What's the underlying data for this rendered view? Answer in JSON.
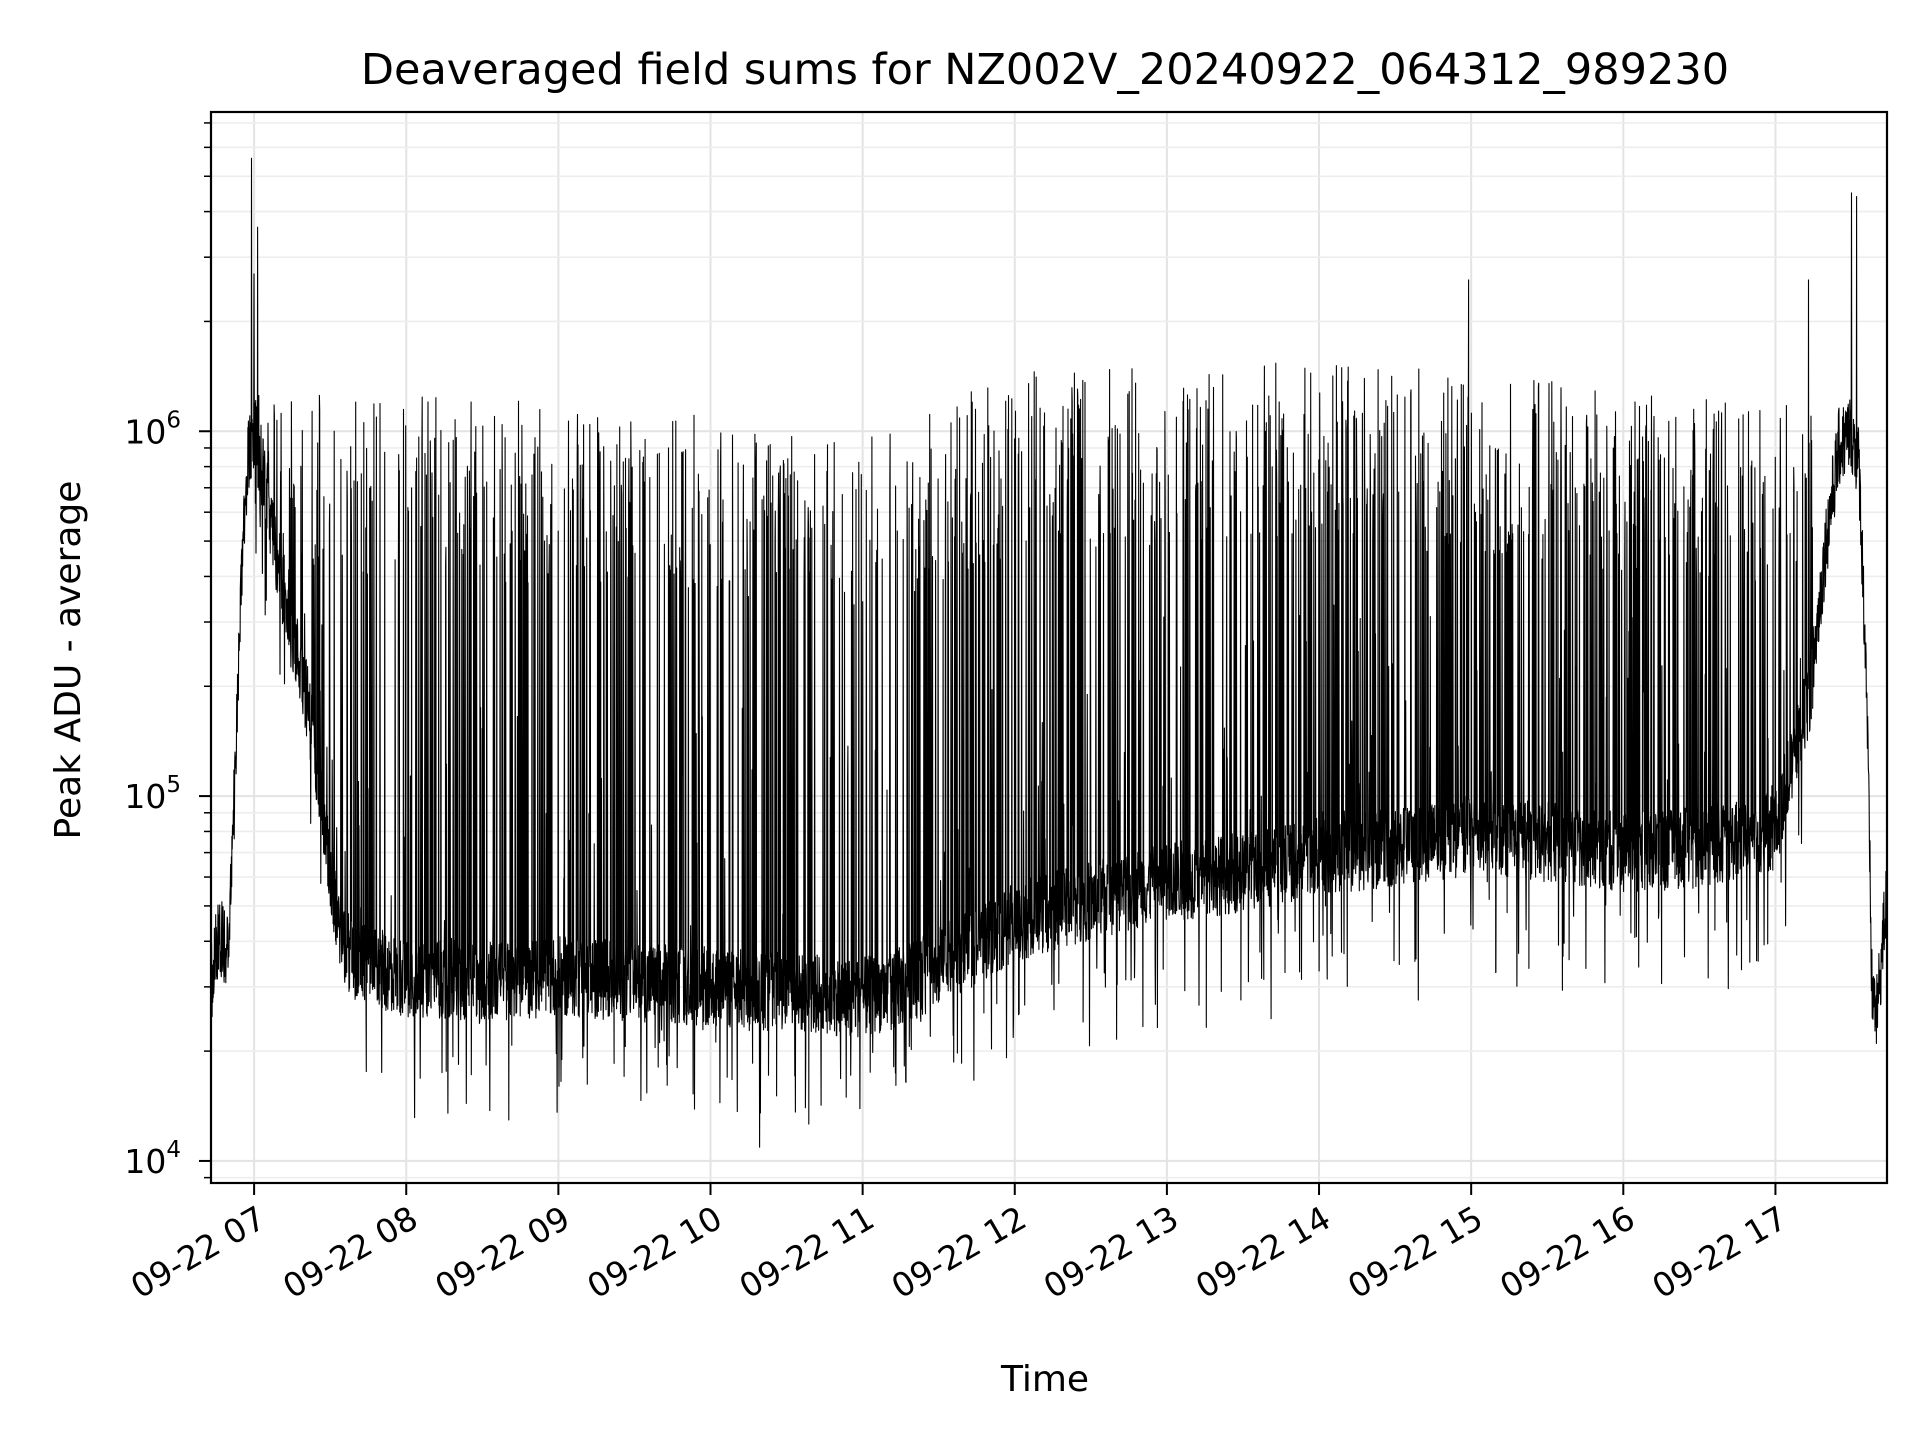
{
  "chart_data": {
    "type": "line",
    "title": "Deaveraged field sums for NZ002V_20240922_064312_989230",
    "xlabel": "Time",
    "ylabel": "Peak ADU - average",
    "yscale": "log",
    "ylim": [
      8700,
      7500000
    ],
    "xlim": [
      "2024-09-22 06:43",
      "2024-09-22 17:44"
    ],
    "grid": true,
    "line_color": "#000000",
    "x_ticks": [
      "09-22 07",
      "09-22 08",
      "09-22 09",
      "09-22 10",
      "09-22 11",
      "09-22 12",
      "09-22 13",
      "09-22 14",
      "09-22 15",
      "09-22 16",
      "09-22 17"
    ],
    "y_ticks": [
      {
        "value": 10000,
        "base": "10",
        "exp": "4"
      },
      {
        "value": 100000,
        "base": "10",
        "exp": "5"
      },
      {
        "value": 1000000,
        "base": "10",
        "exp": "6"
      }
    ],
    "series": [
      {
        "baseline": {
          "x": [
            "2024-09-22 06:43",
            "2024-09-22 06:46",
            "2024-09-22 06:50",
            "2024-09-22 06:52",
            "2024-09-22 06:55",
            "2024-09-22 06:58",
            "2024-09-22 07:00",
            "2024-09-22 07:03",
            "2024-09-22 07:08",
            "2024-09-22 07:14",
            "2024-09-22 07:20",
            "2024-09-22 07:25",
            "2024-09-22 07:30",
            "2024-09-22 07:35",
            "2024-09-22 07:40",
            "2024-09-22 08:00",
            "2024-09-22 08:30",
            "2024-09-22 09:00",
            "2024-09-22 09:30",
            "2024-09-22 10:00",
            "2024-09-22 10:30",
            "2024-09-22 11:00",
            "2024-09-22 11:15",
            "2024-09-22 11:30",
            "2024-09-22 12:00",
            "2024-09-22 12:30",
            "2024-09-22 13:00",
            "2024-09-22 13:30",
            "2024-09-22 14:00",
            "2024-09-22 14:30",
            "2024-09-22 15:00",
            "2024-09-22 15:30",
            "2024-09-22 16:00",
            "2024-09-22 16:30",
            "2024-09-22 17:00",
            "2024-09-22 17:14",
            "2024-09-22 17:20",
            "2024-09-22 17:25",
            "2024-09-22 17:30",
            "2024-09-22 17:33",
            "2024-09-22 17:36",
            "2024-09-22 17:38",
            "2024-09-22 17:40",
            "2024-09-22 17:44"
          ],
          "y": [
            30000,
            42000,
            38000,
            90000,
            400000,
            900000,
            1000000,
            800000,
            500000,
            300000,
            200000,
            120000,
            60000,
            40000,
            35000,
            32000,
            31000,
            32000,
            31000,
            30000,
            29000,
            28000,
            30000,
            34000,
            45000,
            52000,
            58000,
            62000,
            68000,
            72000,
            78000,
            75000,
            70000,
            72000,
            80000,
            200000,
            500000,
            900000,
            1000000,
            800000,
            200000,
            30000,
            25000,
            55000
          ]
        },
        "spikes": {
          "x_start": "2024-09-22 07:00",
          "x_end": "2024-09-22 17:15",
          "peak_by_hour": {
            "x": [
              "2024-09-22 07:00",
              "2024-09-22 08:00",
              "2024-09-22 09:00",
              "2024-09-22 09:30",
              "2024-09-22 10:00",
              "2024-09-22 11:00",
              "2024-09-22 12:00",
              "2024-09-22 13:00",
              "2024-09-22 14:00",
              "2024-09-22 15:00",
              "2024-09-22 16:00",
              "2024-09-22 17:00"
            ],
            "y": [
              1300000,
              1250000,
              1200000,
              1200000,
              1100000,
              1000000,
              1450000,
              1550000,
              1550000,
              1450000,
              1300000,
              1200000
            ]
          },
          "notable": [
            {
              "x": "2024-09-22 06:59",
              "y": 5600000
            },
            {
              "x": "2024-09-22 07:00",
              "y": 2700000
            },
            {
              "x": "2024-09-22 14:59",
              "y": 2600000
            },
            {
              "x": "2024-09-22 17:13",
              "y": 2600000
            },
            {
              "x": "2024-09-22 17:30",
              "y": 4500000
            },
            {
              "x": "2024-09-22 17:32",
              "y": 4400000
            }
          ]
        }
      }
    ]
  }
}
